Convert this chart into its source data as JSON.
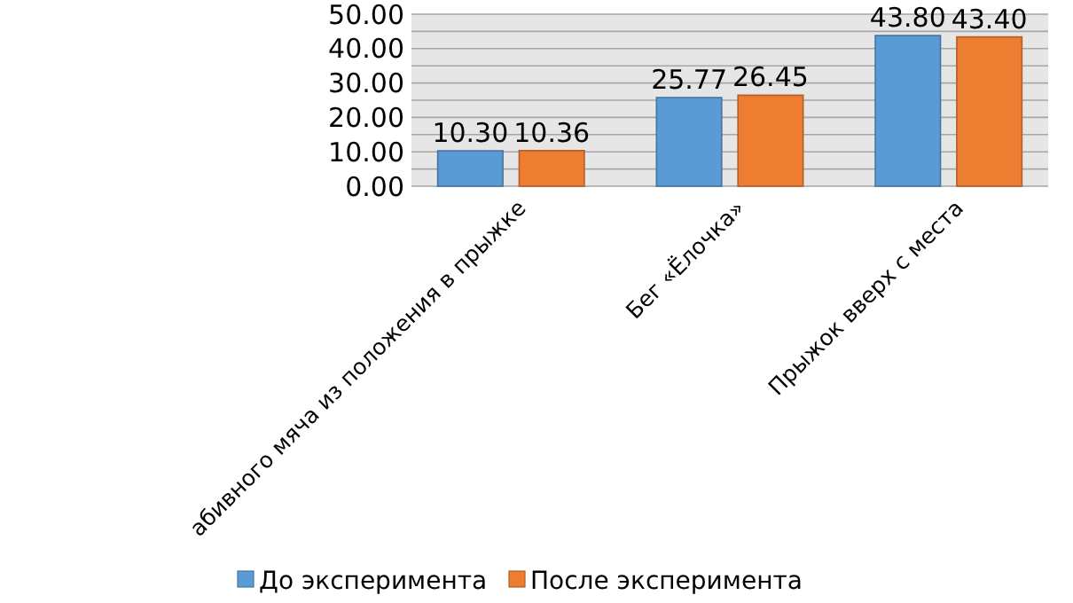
{
  "chart_data": {
    "type": "bar",
    "categories": [
      "абивного мяча из положения в прыжке",
      "Бег «Ёлочка»",
      "Прыжок вверх с места"
    ],
    "series": [
      {
        "name": "До эксперимента",
        "color": "#5b9bd5",
        "values": [
          10.3,
          25.77,
          43.8
        ],
        "value_labels": [
          "10.30",
          "25.77",
          "43.80"
        ]
      },
      {
        "name": "После эксперимента",
        "color": "#ed7d31",
        "values": [
          10.36,
          26.45,
          43.4
        ],
        "value_labels": [
          "10.36",
          "26.45",
          "43.40"
        ]
      }
    ],
    "ylim": [
      0,
      50
    ],
    "yticks": [
      {
        "value": 0,
        "label": "0.00"
      },
      {
        "value": 5,
        "label": null
      },
      {
        "value": 10,
        "label": "10.00"
      },
      {
        "value": 15,
        "label": null
      },
      {
        "value": 20,
        "label": "20.00"
      },
      {
        "value": 25,
        "label": null
      },
      {
        "value": 30,
        "label": "30.00"
      },
      {
        "value": 35,
        "label": null
      },
      {
        "value": 40,
        "label": "40.00"
      },
      {
        "value": 45,
        "label": null
      },
      {
        "value": 50,
        "label": "50.00"
      }
    ],
    "grid": "y",
    "legend": "bottom"
  }
}
